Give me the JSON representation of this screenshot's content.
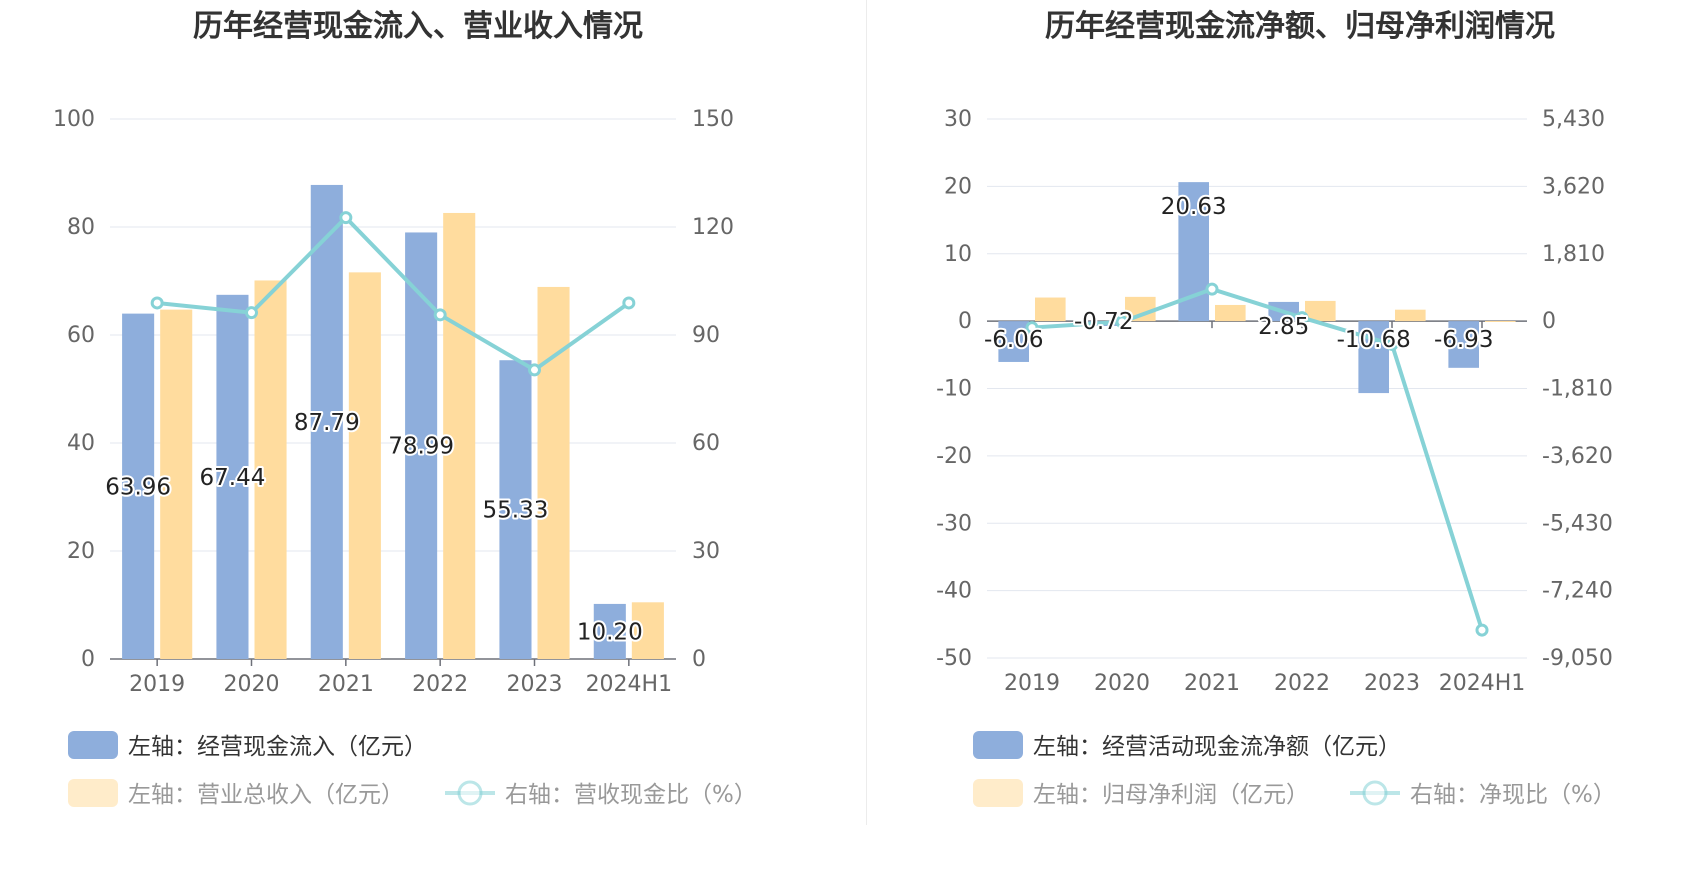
{
  "colors": {
    "bar_primary": "#8eaedc",
    "bar_secondary": "#ffdc9e",
    "line": "#86d2d6",
    "grid": "#e3e7ef",
    "axis_text": "#666666",
    "title": "#333333"
  },
  "chart_data": [
    {
      "type": "bar",
      "title": "历年经营现金流入、营业收入情况",
      "categories": [
        "2019",
        "2020",
        "2021",
        "2022",
        "2023",
        "2024H1"
      ],
      "y_left": {
        "ticks": [
          "100",
          "80",
          "60",
          "40",
          "20",
          "0"
        ],
        "min": 0,
        "max": 100
      },
      "y_right": {
        "ticks": [
          "150",
          "120",
          "90",
          "60",
          "30",
          "0"
        ],
        "min": 0,
        "max": 150
      },
      "series": [
        {
          "name": "经营现金流入",
          "kind": "bar",
          "axis": "left",
          "values": [
            63.96,
            67.44,
            87.79,
            78.99,
            55.33,
            10.2
          ],
          "labels": [
            "63.96",
            "67.44",
            "87.79",
            "78.99",
            "55.33",
            "10.20"
          ]
        },
        {
          "name": "营业总收入",
          "kind": "bar",
          "axis": "left",
          "values": [
            64.7,
            70.1,
            71.6,
            82.6,
            68.9,
            10.5
          ]
        },
        {
          "name": "营收现金比",
          "kind": "line",
          "axis": "right",
          "values": [
            98.9,
            96.2,
            122.6,
            95.6,
            80.3,
            98.9
          ]
        }
      ],
      "legend": [
        {
          "label": "左轴：经营现金流入（亿元）",
          "kind": "bar",
          "series": 0
        },
        {
          "label": "左轴：营业总收入（亿元）",
          "kind": "bar",
          "series": 1
        },
        {
          "label": "右轴：营收现金比（%）",
          "kind": "line",
          "series": 2
        }
      ]
    },
    {
      "type": "bar",
      "title": "历年经营现金流净额、归母净利润情况",
      "categories": [
        "2019",
        "2020",
        "2021",
        "2022",
        "2023",
        "2024H1"
      ],
      "y_left": {
        "ticks": [
          "30",
          "20",
          "10",
          "0",
          "-10",
          "-20",
          "-30",
          "-40",
          "-50"
        ],
        "min": -50,
        "max": 30
      },
      "y_right": {
        "ticks": [
          "5,430",
          "3,620",
          "1,810",
          "0",
          "-1,810",
          "-3,620",
          "-5,430",
          "-7,240",
          "-9,050"
        ],
        "min": -9050,
        "max": 5430
      },
      "series": [
        {
          "name": "经营活动现金流净额",
          "kind": "bar",
          "axis": "left",
          "values": [
            -6.06,
            -0.72,
            20.63,
            2.85,
            -10.68,
            -6.93
          ],
          "labels": [
            "-6.06",
            "-0.72",
            "20.63",
            "2.85",
            "-10.68",
            "-6.93"
          ]
        },
        {
          "name": "归母净利润",
          "kind": "bar",
          "axis": "left",
          "values": [
            3.5,
            3.6,
            2.4,
            3.0,
            1.7,
            0.02
          ]
        },
        {
          "name": "净现比",
          "kind": "line",
          "axis": "right",
          "values": [
            -173,
            -20,
            860,
            95,
            -627,
            -8300
          ]
        }
      ],
      "legend": [
        {
          "label": "左轴：经营活动现金流净额（亿元）",
          "kind": "bar",
          "series": 0
        },
        {
          "label": "左轴：归母净利润（亿元）",
          "kind": "bar",
          "series": 1
        },
        {
          "label": "右轴：净现比（%）",
          "kind": "line",
          "series": 2
        }
      ]
    }
  ]
}
